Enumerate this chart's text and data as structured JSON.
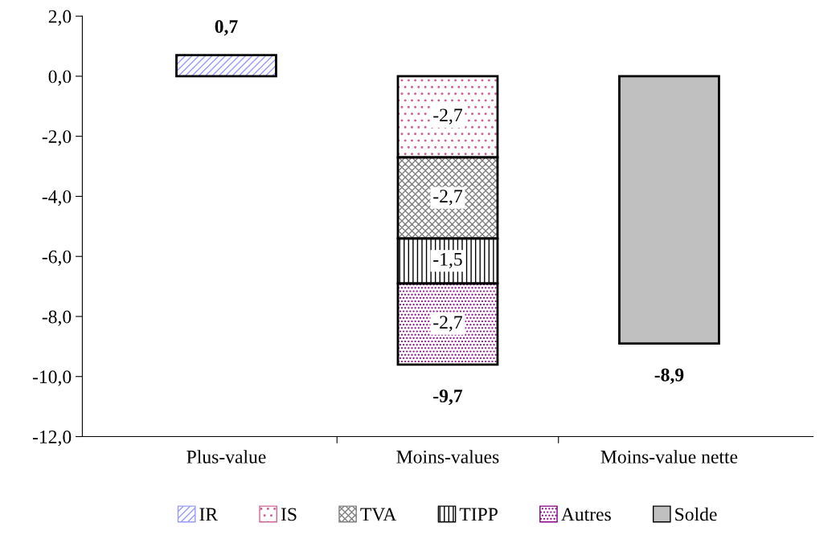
{
  "chart_data": {
    "type": "bar",
    "stacked": true,
    "categories": [
      "Plus-value",
      "Moins-values",
      "Moins-value nette"
    ],
    "series": [
      {
        "name": "IR",
        "color": "#9999ff",
        "values": [
          0.7,
          null,
          null
        ]
      },
      {
        "name": "IS",
        "color": "#cc6699",
        "values": [
          null,
          -2.7,
          null
        ],
        "value_labels": [
          null,
          "-2,7",
          null
        ]
      },
      {
        "name": "TVA",
        "color": "#808080",
        "values": [
          null,
          -2.7,
          null
        ],
        "value_labels": [
          null,
          "-2,7",
          null
        ]
      },
      {
        "name": "TIPP",
        "color": "#000000",
        "values": [
          null,
          -1.5,
          null
        ],
        "value_labels": [
          null,
          "-1,5",
          null
        ]
      },
      {
        "name": "Autres",
        "color": "#800080",
        "values": [
          null,
          -2.7,
          null
        ],
        "value_labels": [
          null,
          "-2,7",
          null
        ]
      },
      {
        "name": "Solde",
        "color": "#c0c0c0",
        "values": [
          null,
          null,
          -8.9
        ]
      }
    ],
    "totals": [
      "0,7",
      "-9,7",
      "-8,9"
    ],
    "ylim": [
      -12,
      2
    ],
    "yticks": [
      {
        "value": 2,
        "label": "2,0"
      },
      {
        "value": 0,
        "label": "0,0"
      },
      {
        "value": -2,
        "label": "-2,0"
      },
      {
        "value": -4,
        "label": "-4,0"
      },
      {
        "value": -6,
        "label": "-6,0"
      },
      {
        "value": -8,
        "label": "-8,0"
      },
      {
        "value": -10,
        "label": "-10,0"
      },
      {
        "value": -12,
        "label": "-12,0"
      }
    ],
    "grid": false,
    "legend": "bottom"
  }
}
